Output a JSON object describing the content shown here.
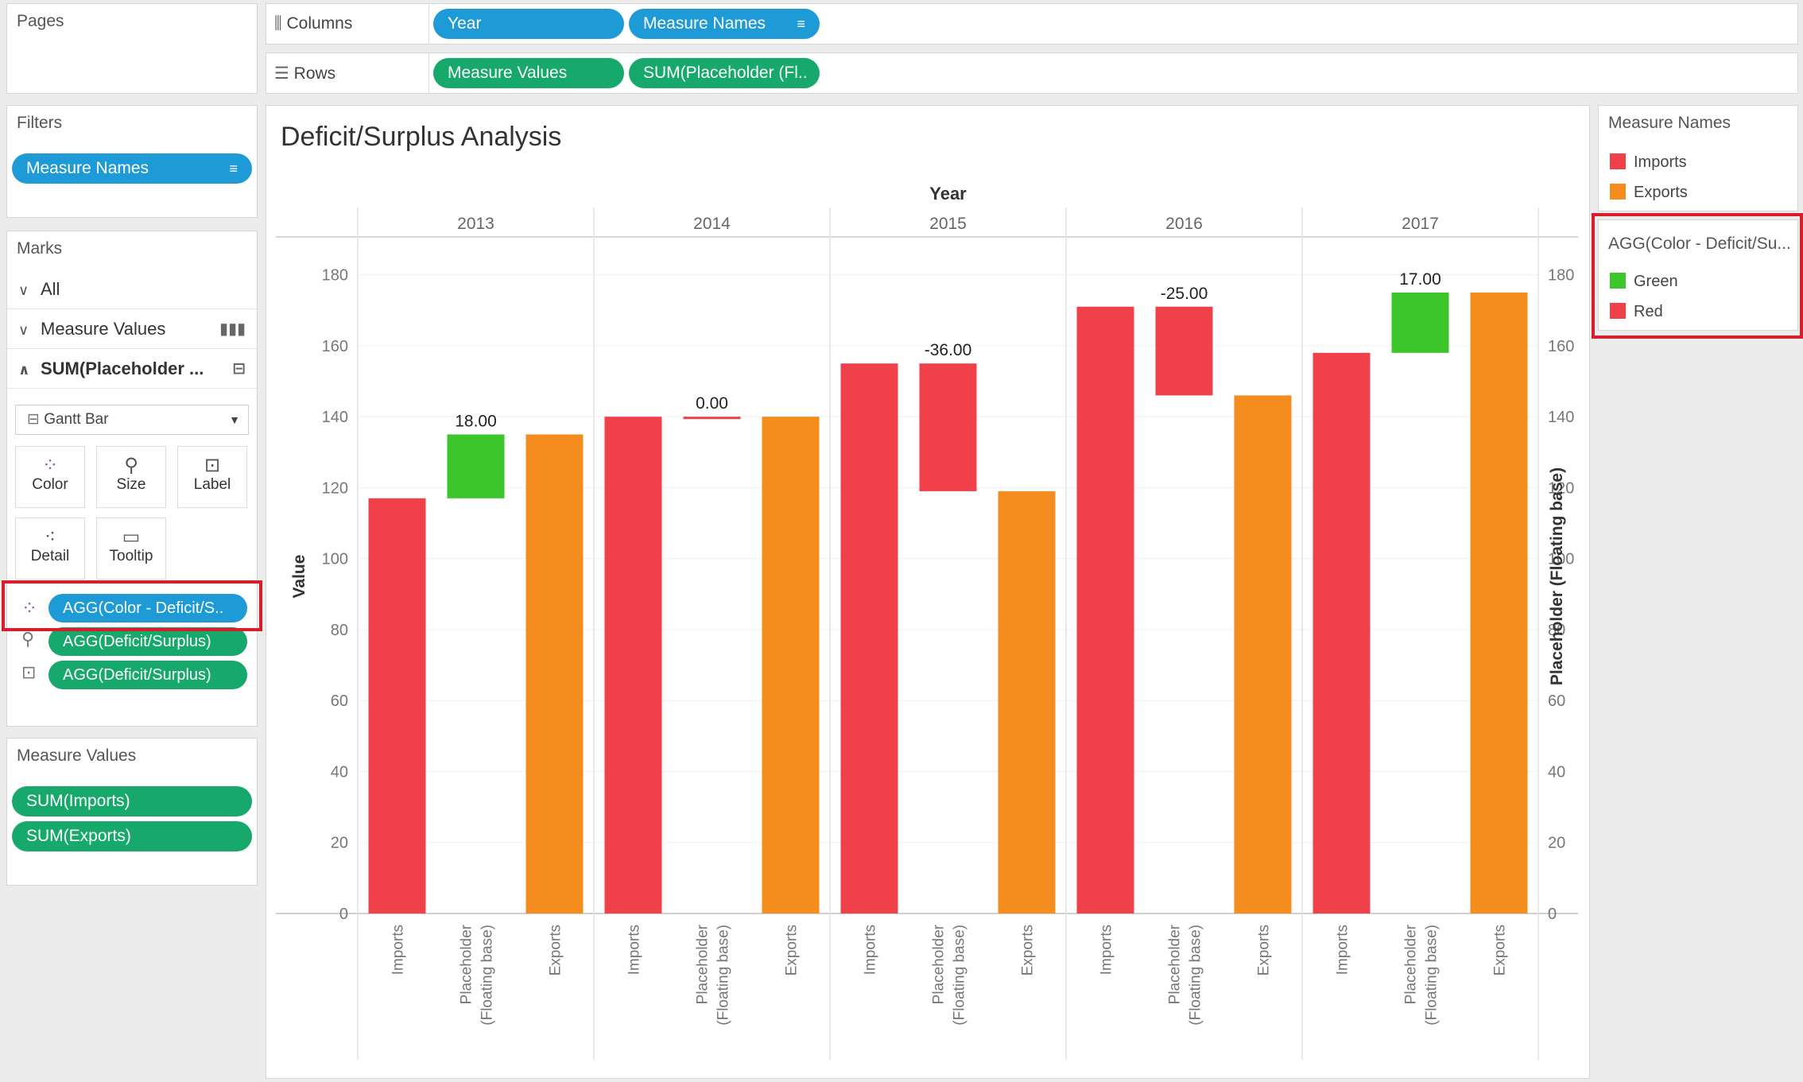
{
  "pages": {
    "title": "Pages"
  },
  "shelves": {
    "columns": {
      "label": "Columns",
      "pills": [
        "Year",
        "Measure Names"
      ]
    },
    "rows": {
      "label": "Rows",
      "pills": [
        "Measure Values",
        "SUM(Placeholder (Fl.."
      ]
    }
  },
  "filters": {
    "title": "Filters",
    "pills": [
      "Measure Names"
    ]
  },
  "marks": {
    "title": "Marks",
    "cards": [
      "All",
      "Measure Values",
      "SUM(Placeholder ..."
    ],
    "mark_type": "Gantt Bar",
    "buttons": [
      "Color",
      "Size",
      "Label",
      "Detail",
      "Tooltip"
    ],
    "fields": [
      "AGG(Color - Deficit/S..",
      "AGG(Deficit/Surplus)",
      "AGG(Deficit/Surplus)"
    ]
  },
  "measure_values": {
    "title": "Measure Values",
    "pills": [
      "SUM(Imports)",
      "SUM(Exports)"
    ]
  },
  "legend_measure": {
    "title": "Measure Names",
    "items": [
      {
        "label": "Imports",
        "color": "#f0404a"
      },
      {
        "label": "Exports",
        "color": "#f58d1e"
      }
    ]
  },
  "legend_color": {
    "title": "AGG(Color - Deficit/Su...",
    "items": [
      {
        "label": "Green",
        "color": "#3cc62b"
      },
      {
        "label": "Red",
        "color": "#f0404a"
      }
    ]
  },
  "chart_data": {
    "type": "bar",
    "title": "Deficit/Surplus Analysis",
    "column_header": "Year",
    "ylabel": "Value",
    "ylabel_right": "Placeholder (Floating base)",
    "ylim": [
      0,
      190
    ],
    "yticks": [
      0,
      20,
      40,
      60,
      80,
      100,
      120,
      140,
      160,
      180
    ],
    "sub_categories": [
      "Imports",
      "Placeholder\n(Floating base)",
      "Exports"
    ],
    "years": [
      {
        "year": "2013",
        "imports": 117,
        "exports": 135,
        "deficit_surplus": 18,
        "label": "18.00",
        "color": "Green"
      },
      {
        "year": "2014",
        "imports": 140,
        "exports": 140,
        "deficit_surplus": 0,
        "label": "0.00",
        "color": "Red"
      },
      {
        "year": "2015",
        "imports": 155,
        "exports": 119,
        "deficit_surplus": -36,
        "label": "-36.00",
        "color": "Red"
      },
      {
        "year": "2016",
        "imports": 171,
        "exports": 146,
        "deficit_surplus": -25,
        "label": "-25.00",
        "color": "Red"
      },
      {
        "year": "2017",
        "imports": 158,
        "exports": 175,
        "deficit_surplus": 17,
        "label": "17.00",
        "color": "Green"
      }
    ],
    "colors": {
      "imports": "#f0404a",
      "exports": "#f58d1e",
      "green": "#3cc62b",
      "red": "#f0404a"
    }
  }
}
